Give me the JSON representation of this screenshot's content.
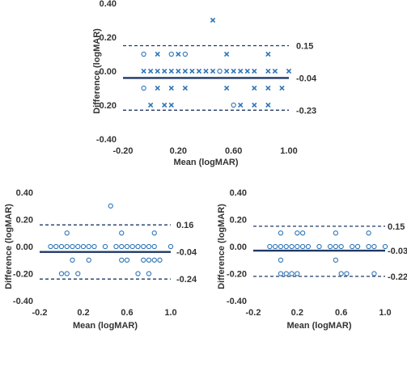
{
  "chart_data": [
    {
      "type": "scatter",
      "xlabel": "Mean (logMAR)",
      "ylabel": "Difference (logMAR)",
      "xlim": [
        -0.2,
        1.0
      ],
      "ylim": [
        -0.4,
        0.4
      ],
      "x_ticks": [
        "-0.20",
        "0.20",
        "0.60",
        "1.00"
      ],
      "y_ticks": [
        "0.40",
        "0.20",
        "0.00",
        "-0.20",
        "-0.40"
      ],
      "mean_line": -0.04,
      "loa_upper": 0.15,
      "loa_lower": -0.23,
      "mean_label": "-0.04",
      "upper_label": "0.15",
      "lower_label": "-0.23",
      "color": "#2e75b6",
      "series": [
        {
          "marker": "x",
          "points": [
            [
              0.45,
              0.3
            ],
            [
              0.05,
              0.1
            ],
            [
              0.2,
              0.1
            ],
            [
              0.55,
              0.1
            ],
            [
              0.85,
              0.1
            ],
            [
              -0.05,
              0.0
            ],
            [
              0.0,
              0.0
            ],
            [
              0.05,
              0.0
            ],
            [
              0.1,
              0.0
            ],
            [
              0.15,
              0.0
            ],
            [
              0.2,
              0.0
            ],
            [
              0.25,
              0.0
            ],
            [
              0.3,
              0.0
            ],
            [
              0.35,
              0.0
            ],
            [
              0.4,
              0.0
            ],
            [
              0.45,
              0.0
            ],
            [
              0.55,
              0.0
            ],
            [
              0.6,
              0.0
            ],
            [
              0.65,
              0.0
            ],
            [
              0.7,
              0.0
            ],
            [
              0.75,
              0.0
            ],
            [
              0.85,
              0.0
            ],
            [
              0.9,
              0.0
            ],
            [
              1.0,
              0.0
            ],
            [
              0.05,
              -0.1
            ],
            [
              0.15,
              -0.1
            ],
            [
              0.25,
              -0.1
            ],
            [
              0.55,
              -0.1
            ],
            [
              0.75,
              -0.1
            ],
            [
              0.85,
              -0.1
            ],
            [
              0.95,
              -0.1
            ],
            [
              0.0,
              -0.2
            ],
            [
              0.1,
              -0.2
            ],
            [
              0.15,
              -0.2
            ],
            [
              0.65,
              -0.2
            ],
            [
              0.75,
              -0.2
            ],
            [
              0.85,
              -0.2
            ]
          ]
        },
        {
          "marker": "o",
          "points": [
            [
              -0.05,
              0.1
            ],
            [
              0.15,
              0.1
            ],
            [
              0.25,
              0.1
            ],
            [
              -0.05,
              -0.1
            ],
            [
              0.5,
              0.0
            ],
            [
              0.6,
              -0.2
            ]
          ]
        }
      ]
    },
    {
      "type": "scatter",
      "xlabel": "Mean (logMAR)",
      "ylabel": "Difference (logMAR)",
      "xlim": [
        -0.2,
        1.0
      ],
      "ylim": [
        -0.4,
        0.4
      ],
      "x_ticks": [
        "-0.2",
        "0.2",
        "0.6",
        "1.0"
      ],
      "y_ticks": [
        "0.40",
        "0.20",
        "0.00",
        "-0.20",
        "-0.40"
      ],
      "mean_line": -0.04,
      "loa_upper": 0.16,
      "loa_lower": -0.24,
      "mean_label": "-0.04",
      "upper_label": "0.16",
      "lower_label": "-0.24",
      "color": "#2e75b6",
      "series": [
        {
          "marker": "o",
          "points": [
            [
              0.45,
              0.3
            ],
            [
              0.05,
              0.1
            ],
            [
              0.55,
              0.1
            ],
            [
              0.85,
              0.1
            ],
            [
              -0.1,
              0.0
            ],
            [
              -0.05,
              0.0
            ],
            [
              0.0,
              0.0
            ],
            [
              0.05,
              0.0
            ],
            [
              0.1,
              0.0
            ],
            [
              0.15,
              0.0
            ],
            [
              0.2,
              0.0
            ],
            [
              0.25,
              0.0
            ],
            [
              0.3,
              0.0
            ],
            [
              0.4,
              0.0
            ],
            [
              0.5,
              0.0
            ],
            [
              0.55,
              0.0
            ],
            [
              0.6,
              0.0
            ],
            [
              0.65,
              0.0
            ],
            [
              0.7,
              0.0
            ],
            [
              0.75,
              0.0
            ],
            [
              0.8,
              0.0
            ],
            [
              0.85,
              0.0
            ],
            [
              1.0,
              0.0
            ],
            [
              0.1,
              -0.1
            ],
            [
              0.25,
              -0.1
            ],
            [
              0.55,
              -0.1
            ],
            [
              0.6,
              -0.1
            ],
            [
              0.75,
              -0.1
            ],
            [
              0.8,
              -0.1
            ],
            [
              0.85,
              -0.1
            ],
            [
              0.9,
              -0.1
            ],
            [
              0.0,
              -0.2
            ],
            [
              0.05,
              -0.2
            ],
            [
              0.15,
              -0.2
            ],
            [
              0.7,
              -0.2
            ],
            [
              0.8,
              -0.2
            ]
          ]
        }
      ]
    },
    {
      "type": "scatter",
      "xlabel": "Mean (logMAR)",
      "ylabel": "Difference (logMAR)",
      "xlim": [
        -0.2,
        1.0
      ],
      "ylim": [
        -0.4,
        0.4
      ],
      "x_ticks": [
        "-0.2",
        "0.2",
        "0.6",
        "1.0"
      ],
      "y_ticks": [
        "0.40",
        "0.20",
        "0.00",
        "-0.20",
        "-0.40"
      ],
      "mean_line": -0.03,
      "loa_upper": 0.15,
      "loa_lower": -0.22,
      "mean_label": "-0.03",
      "upper_label": "0.15",
      "lower_label": "-0.22",
      "color": "#2e75b6",
      "series": [
        {
          "marker": "o",
          "points": [
            [
              0.05,
              0.1
            ],
            [
              0.2,
              0.1
            ],
            [
              0.25,
              0.1
            ],
            [
              0.55,
              0.1
            ],
            [
              0.85,
              0.1
            ],
            [
              -0.05,
              0.0
            ],
            [
              0.0,
              0.0
            ],
            [
              0.05,
              0.0
            ],
            [
              0.1,
              0.0
            ],
            [
              0.15,
              0.0
            ],
            [
              0.2,
              0.0
            ],
            [
              0.25,
              0.0
            ],
            [
              0.3,
              0.0
            ],
            [
              0.4,
              0.0
            ],
            [
              0.5,
              0.0
            ],
            [
              0.55,
              0.0
            ],
            [
              0.6,
              0.0
            ],
            [
              0.7,
              0.0
            ],
            [
              0.75,
              0.0
            ],
            [
              0.85,
              0.0
            ],
            [
              0.9,
              0.0
            ],
            [
              1.0,
              0.0
            ],
            [
              0.05,
              -0.1
            ],
            [
              0.55,
              -0.1
            ],
            [
              0.05,
              -0.2
            ],
            [
              0.1,
              -0.2
            ],
            [
              0.15,
              -0.2
            ],
            [
              0.2,
              -0.2
            ],
            [
              0.6,
              -0.2
            ],
            [
              0.65,
              -0.2
            ],
            [
              0.9,
              -0.2
            ]
          ]
        }
      ]
    }
  ]
}
